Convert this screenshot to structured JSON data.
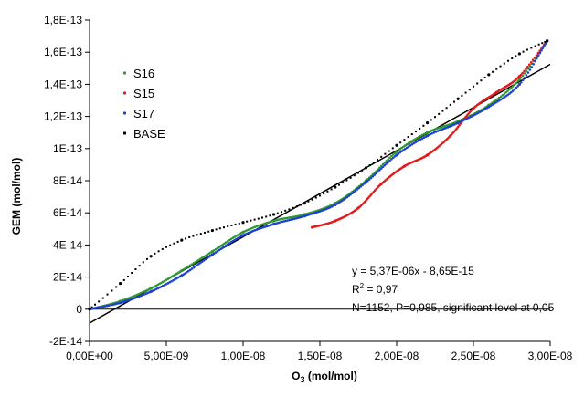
{
  "chart_data": {
    "type": "scatter",
    "xlabel": "O3 (mol/mol)",
    "xlabel_main": "O",
    "xlabel_sub": "3",
    "xlabel_rest": " (mol/mol)",
    "ylabel": "GEM (mol/mol)",
    "xlim": [
      0,
      3e-08
    ],
    "ylim": [
      -2e-14,
      1.8e-13
    ],
    "x_ticks": [
      0,
      5e-09,
      1e-08,
      1.5e-08,
      2e-08,
      2.5e-08,
      3e-08
    ],
    "x_tick_labels": [
      "0,00E+00",
      "5,00E-09",
      "1,00E-08",
      "1,50E-08",
      "2,00E-08",
      "2,50E-08",
      "3,00E-08"
    ],
    "y_ticks": [
      -2e-14,
      0,
      2e-14,
      4e-14,
      6e-14,
      8e-14,
      1e-13,
      1.2e-13,
      1.4e-13,
      1.6e-13,
      1.8e-13
    ],
    "y_tick_labels": [
      "-2E-14",
      "0",
      "2E-14",
      "4E-14",
      "6E-14",
      "8E-14",
      "1E-13",
      "1,2E-13",
      "1,4E-13",
      "1,6E-13",
      "1,8E-13"
    ],
    "grid": false,
    "legend_position": "top-left",
    "series": [
      {
        "name": "S16",
        "color": "#2e9a2e",
        "points": [
          [
            0,
            0
          ],
          [
            2e-09,
            5e-15
          ],
          [
            4e-09,
            1.3e-14
          ],
          [
            6e-09,
            2.4e-14
          ],
          [
            8e-09,
            3.6e-14
          ],
          [
            1e-08,
            4.8e-14
          ],
          [
            1.2e-08,
            5.5e-14
          ],
          [
            1.4e-08,
            5.9e-14
          ],
          [
            1.6e-08,
            6.6e-14
          ],
          [
            1.8e-08,
            8e-14
          ],
          [
            2e-08,
            9.8e-14
          ],
          [
            2.2e-08,
            1.1e-13
          ],
          [
            2.4e-08,
            1.17e-13
          ],
          [
            2.6e-08,
            1.27e-13
          ],
          [
            2.8e-08,
            1.43e-13
          ],
          [
            2.98e-08,
            1.67e-13
          ]
        ]
      },
      {
        "name": "S15",
        "color": "#e31a1c",
        "points": [
          [
            1.45e-08,
            5.1e-14
          ],
          [
            1.6e-08,
            5.5e-14
          ],
          [
            1.75e-08,
            6.3e-14
          ],
          [
            1.9e-08,
            7.8e-14
          ],
          [
            2.05e-08,
            8.9e-14
          ],
          [
            2.2e-08,
            9.6e-14
          ],
          [
            2.35e-08,
            1.08e-13
          ],
          [
            2.5e-08,
            1.25e-13
          ],
          [
            2.65e-08,
            1.35e-13
          ],
          [
            2.8e-08,
            1.45e-13
          ],
          [
            2.98e-08,
            1.67e-13
          ]
        ]
      },
      {
        "name": "S17",
        "color": "#1f3fd6",
        "points": [
          [
            0,
            0
          ],
          [
            2e-09,
            4e-15
          ],
          [
            4e-09,
            1.1e-14
          ],
          [
            6e-09,
            2.1e-14
          ],
          [
            8e-09,
            3.4e-14
          ],
          [
            1e-08,
            4.6e-14
          ],
          [
            1.2e-08,
            5.3e-14
          ],
          [
            1.4e-08,
            5.8e-14
          ],
          [
            1.6e-08,
            6.5e-14
          ],
          [
            1.8e-08,
            7.9e-14
          ],
          [
            2e-08,
            9.6e-14
          ],
          [
            2.2e-08,
            1.08e-13
          ],
          [
            2.4e-08,
            1.16e-13
          ],
          [
            2.6e-08,
            1.26e-13
          ],
          [
            2.8e-08,
            1.4e-13
          ],
          [
            2.98e-08,
            1.67e-13
          ]
        ]
      },
      {
        "name": "BASE",
        "color": "#000000",
        "points": [
          [
            0,
            0
          ],
          [
            2e-09,
            1.6e-14
          ],
          [
            4e-09,
            3.3e-14
          ],
          [
            6e-09,
            4.3e-14
          ],
          [
            8e-09,
            4.9e-14
          ],
          [
            1e-08,
            5.4e-14
          ],
          [
            1.2e-08,
            5.9e-14
          ],
          [
            1.4e-08,
            6.6e-14
          ],
          [
            1.6e-08,
            7.6e-14
          ],
          [
            1.8e-08,
            8.8e-14
          ],
          [
            2e-08,
            1.02e-13
          ],
          [
            2.2e-08,
            1.16e-13
          ],
          [
            2.4e-08,
            1.31e-13
          ],
          [
            2.6e-08,
            1.46e-13
          ],
          [
            2.8e-08,
            1.59e-13
          ],
          [
            2.98e-08,
            1.67e-13
          ]
        ]
      }
    ],
    "trendline": {
      "slope": 5.37e-06,
      "intercept": -8.65e-15,
      "color": "#000000"
    },
    "annotation": {
      "equation": "y = 5,37E-06x - 8,65E-15",
      "r2_main": "R",
      "r2_sup": "2",
      "r2_rest": " = 0,97",
      "stats": "N=1152, P=0,985, significant level at 0,05"
    }
  }
}
